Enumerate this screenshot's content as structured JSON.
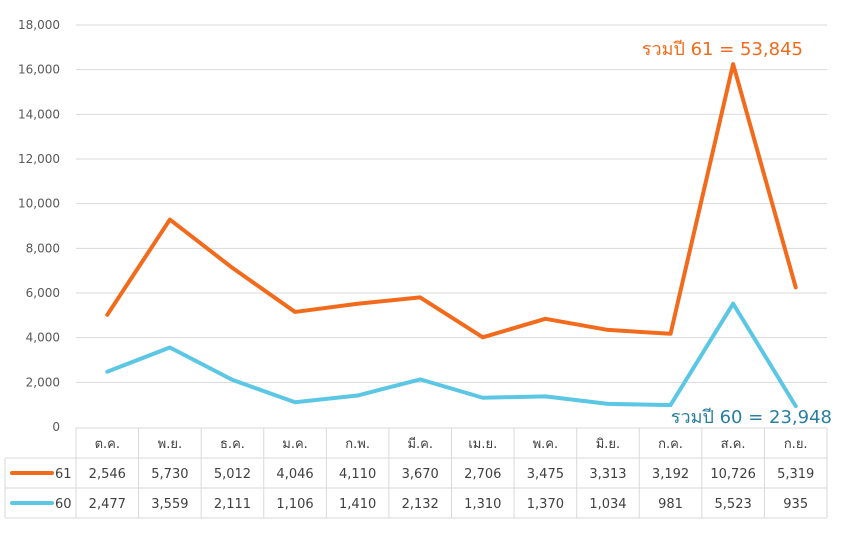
{
  "chart_data": {
    "type": "line",
    "stacked": true,
    "categories": [
      "ต.ค.",
      "พ.ย.",
      "ธ.ค.",
      "ม.ค.",
      "ก.พ.",
      "มี.ค.",
      "เม.ย.",
      "พ.ค.",
      "มิ.ย.",
      "ก.ค.",
      "ส.ค.",
      "ก.ย."
    ],
    "series": [
      {
        "name": "61",
        "color": "#f26b1d",
        "values": [
          2546,
          5730,
          5012,
          4046,
          4110,
          3670,
          2706,
          3475,
          3313,
          3192,
          10726,
          5319
        ]
      },
      {
        "name": "60",
        "color": "#5bc7e5",
        "values": [
          2477,
          3559,
          2111,
          1106,
          1410,
          2132,
          1310,
          1370,
          1034,
          981,
          5523,
          935
        ]
      }
    ],
    "ylim": [
      0,
      18000
    ],
    "yticks": [
      "0",
      "2,000",
      "4,000",
      "6,000",
      "8,000",
      "10,000",
      "12,000",
      "14,000",
      "16,000",
      "18,000"
    ],
    "grid": true,
    "data_table": true,
    "annotations": [
      {
        "text": "รวมปี 61 = 53,845",
        "color": "#f26b1d"
      },
      {
        "text": "รวมปี 60 = 23,948",
        "color": "#2a7f9e"
      }
    ]
  }
}
